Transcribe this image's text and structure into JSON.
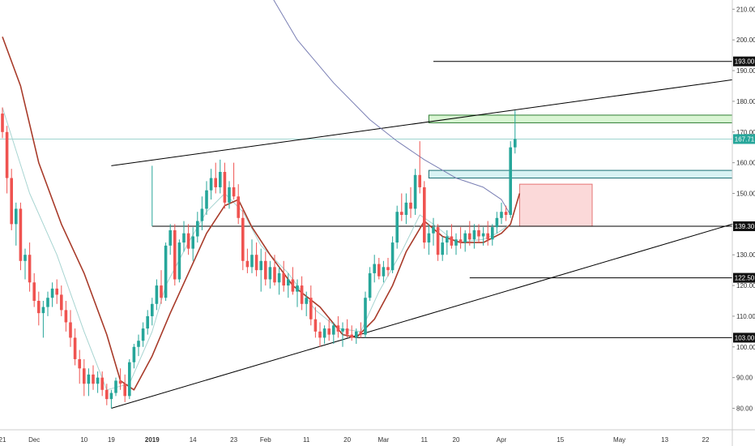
{
  "chart_data": {
    "type": "candlestick",
    "title": "",
    "xlabel": "",
    "ylabel": "",
    "ylim": [
      73,
      213
    ],
    "y_ticks": [
      "210.00",
      "200.00",
      "190.00",
      "180.00",
      "170.00",
      "160.00",
      "150.00",
      "140.00",
      "130.00",
      "120.00",
      "110.00",
      "100.00",
      "90.00",
      "80.00"
    ],
    "x_tick_labels": [
      "21",
      "Dec",
      "10",
      "19",
      "2019",
      "14",
      "23",
      "Feb",
      "11",
      "20",
      "Mar",
      "11",
      "20",
      "Apr",
      "15",
      "May",
      "13",
      "22"
    ],
    "price_badges": [
      {
        "label": "193.00",
        "value": 193.0,
        "kind": "level"
      },
      {
        "label": "167.71",
        "value": 167.71,
        "kind": "last"
      },
      {
        "label": "139.30",
        "value": 139.3,
        "kind": "level"
      },
      {
        "label": "122.50",
        "value": 122.5,
        "kind": "level"
      },
      {
        "label": "103.00",
        "value": 103.0,
        "kind": "level"
      }
    ],
    "colors": {
      "up": "#26a69a",
      "down": "#ef5350",
      "ema_fast": "#a7d4d1",
      "ema_slow": "#a83b2a",
      "sma_long": "#7a7fb4",
      "line": "#000000",
      "last": "#26a69a"
    },
    "candles": [
      [
        176,
        178,
        168,
        170
      ],
      [
        170,
        172,
        150,
        155
      ],
      [
        155,
        158,
        138,
        140
      ],
      [
        140,
        147,
        133,
        145
      ],
      [
        145,
        147,
        125,
        128
      ],
      [
        128,
        132,
        122,
        130
      ],
      [
        130,
        134,
        118,
        121
      ],
      [
        121,
        124,
        113,
        115
      ],
      [
        115,
        118,
        107,
        111
      ],
      [
        111,
        115,
        103,
        113
      ],
      [
        113,
        118,
        110,
        116
      ],
      [
        116,
        121,
        113,
        119
      ],
      [
        119,
        122,
        114,
        117
      ],
      [
        117,
        120,
        110,
        112
      ],
      [
        112,
        115,
        105,
        108
      ],
      [
        108,
        112,
        100,
        103
      ],
      [
        103,
        106,
        94,
        96
      ],
      [
        96,
        99,
        88,
        93
      ],
      [
        93,
        96,
        84,
        88
      ],
      [
        88,
        93,
        84,
        91
      ],
      [
        91,
        94,
        86,
        88
      ],
      [
        88,
        92,
        85,
        90
      ],
      [
        90,
        92,
        84,
        86
      ],
      [
        86,
        88,
        81,
        83
      ],
      [
        83,
        86,
        80,
        85
      ],
      [
        85,
        90,
        84,
        89
      ],
      [
        89,
        93,
        86,
        88
      ],
      [
        88,
        91,
        82,
        84
      ],
      [
        84,
        96,
        83,
        95
      ],
      [
        95,
        101,
        93,
        100
      ],
      [
        100,
        104,
        97,
        102
      ],
      [
        102,
        108,
        100,
        106
      ],
      [
        106,
        112,
        104,
        110
      ],
      [
        110,
        116,
        107,
        114
      ],
      [
        114,
        122,
        112,
        120
      ],
      [
        120,
        125,
        114,
        116
      ],
      [
        116,
        134,
        115,
        133
      ],
      [
        133,
        140,
        130,
        138
      ],
      [
        138,
        140,
        120,
        122
      ],
      [
        122,
        135,
        121,
        134
      ],
      [
        134,
        141,
        131,
        137
      ],
      [
        137,
        140,
        130,
        132
      ],
      [
        132,
        139,
        128,
        136
      ],
      [
        136,
        144,
        134,
        141
      ],
      [
        141,
        149,
        138,
        145
      ],
      [
        145,
        154,
        143,
        151
      ],
      [
        151,
        158,
        148,
        155
      ],
      [
        155,
        160,
        150,
        152
      ],
      [
        152,
        161,
        150,
        157
      ],
      [
        157,
        160,
        145,
        147
      ],
      [
        147,
        154,
        145,
        152
      ],
      [
        152,
        160,
        148,
        149
      ],
      [
        149,
        153,
        140,
        142
      ],
      [
        142,
        145,
        125,
        128
      ],
      [
        128,
        132,
        124,
        126
      ],
      [
        126,
        135,
        124,
        130
      ],
      [
        130,
        134,
        123,
        125
      ],
      [
        125,
        132,
        118,
        128
      ],
      [
        128,
        131,
        120,
        122
      ],
      [
        122,
        128,
        119,
        126
      ],
      [
        126,
        130,
        120,
        121
      ],
      [
        121,
        126,
        117,
        124
      ],
      [
        124,
        128,
        118,
        120
      ],
      [
        120,
        124,
        116,
        122
      ],
      [
        122,
        126,
        117,
        118
      ],
      [
        118,
        122,
        113,
        120
      ],
      [
        120,
        123,
        112,
        114
      ],
      [
        114,
        118,
        110,
        116
      ],
      [
        116,
        120,
        107,
        109
      ],
      [
        109,
        113,
        103,
        105
      ],
      [
        105,
        108,
        100,
        103
      ],
      [
        103,
        107,
        101,
        106
      ],
      [
        106,
        109,
        102,
        104
      ],
      [
        104,
        108,
        101,
        107
      ],
      [
        107,
        110,
        103,
        105
      ],
      [
        105,
        108,
        100,
        106
      ],
      [
        106,
        109,
        103,
        104
      ],
      [
        104,
        107,
        102,
        103
      ],
      [
        103,
        106,
        101,
        105
      ],
      [
        105,
        108,
        103,
        104
      ],
      [
        104,
        118,
        103,
        116
      ],
      [
        116,
        126,
        115,
        124
      ],
      [
        124,
        130,
        121,
        127
      ],
      [
        127,
        129,
        122,
        123
      ],
      [
        123,
        128,
        121,
        126
      ],
      [
        126,
        129,
        123,
        125
      ],
      [
        125,
        136,
        124,
        134
      ],
      [
        134,
        146,
        132,
        144
      ],
      [
        144,
        150,
        141,
        143
      ],
      [
        143,
        150,
        140,
        147
      ],
      [
        147,
        152,
        142,
        145
      ],
      [
        145,
        158,
        143,
        156
      ],
      [
        156,
        167,
        150,
        152
      ],
      [
        152,
        154,
        132,
        134
      ],
      [
        134,
        140,
        130,
        137
      ],
      [
        137,
        142,
        133,
        139
      ],
      [
        139,
        140,
        128,
        130
      ],
      [
        130,
        136,
        128,
        134
      ],
      [
        134,
        138,
        130,
        136
      ],
      [
        136,
        140,
        132,
        133
      ],
      [
        133,
        137,
        130,
        135
      ],
      [
        135,
        139,
        132,
        134
      ],
      [
        134,
        138,
        131,
        137
      ],
      [
        137,
        141,
        133,
        135
      ],
      [
        135,
        140,
        132,
        138
      ],
      [
        138,
        140,
        134,
        136
      ],
      [
        136,
        139,
        133,
        137
      ],
      [
        137,
        141,
        133,
        135
      ],
      [
        135,
        140,
        133,
        139
      ],
      [
        139,
        144,
        137,
        142
      ],
      [
        142,
        147,
        140,
        144
      ],
      [
        144,
        146,
        141,
        143
      ],
      [
        143,
        167,
        142,
        165
      ],
      [
        165,
        177,
        163,
        167.71
      ]
    ],
    "ema_fast": [
      [
        0,
        178
      ],
      [
        6,
        150
      ],
      [
        12,
        130
      ],
      [
        18,
        105
      ],
      [
        23,
        86
      ],
      [
        28,
        88
      ],
      [
        33,
        105
      ],
      [
        36,
        120
      ],
      [
        41,
        134
      ],
      [
        45,
        144
      ],
      [
        49,
        150
      ],
      [
        53,
        144
      ],
      [
        57,
        133
      ],
      [
        63,
        124
      ],
      [
        69,
        112
      ],
      [
        74,
        106
      ],
      [
        79,
        105
      ],
      [
        83,
        118
      ],
      [
        88,
        131
      ],
      [
        92,
        143
      ],
      [
        95,
        140
      ],
      [
        100,
        134
      ],
      [
        106,
        135
      ],
      [
        109,
        137
      ],
      [
        112,
        140
      ]
    ],
    "ema_slow": [
      [
        0,
        201
      ],
      [
        4,
        185
      ],
      [
        8,
        160
      ],
      [
        13,
        140
      ],
      [
        18,
        124
      ],
      [
        23,
        104
      ],
      [
        26,
        89
      ],
      [
        29,
        86
      ],
      [
        33,
        97
      ],
      [
        37,
        111
      ],
      [
        41,
        124
      ],
      [
        45,
        137
      ],
      [
        49,
        146
      ],
      [
        52,
        148
      ],
      [
        55,
        139
      ],
      [
        59,
        130
      ],
      [
        64,
        120
      ],
      [
        70,
        113
      ],
      [
        75,
        104
      ],
      [
        78,
        103
      ],
      [
        82,
        109
      ],
      [
        86,
        120
      ],
      [
        89,
        131
      ],
      [
        93,
        141
      ],
      [
        97,
        136
      ],
      [
        101,
        134
      ],
      [
        106,
        134
      ],
      [
        110,
        137
      ],
      [
        112,
        140
      ],
      [
        114,
        150
      ]
    ],
    "sma_long": [
      [
        59,
        215
      ],
      [
        65,
        200
      ],
      [
        73,
        186
      ],
      [
        81,
        174
      ],
      [
        87,
        167
      ],
      [
        93,
        161
      ],
      [
        100,
        155
      ],
      [
        106,
        152
      ],
      [
        110,
        148
      ],
      [
        112,
        143
      ]
    ],
    "drawings": {
      "upper_trend": {
        "from": [
          24,
          159
        ],
        "to": [
          195,
          187
        ]
      },
      "lower_trend": {
        "from": [
          24,
          80
        ],
        "to": [
          195,
          140
        ]
      },
      "h_193": {
        "value": 193.0,
        "from_x": 95,
        "to_x": 195
      },
      "h_139": {
        "value": 139.3,
        "from_x": 33,
        "to_x": 195
      },
      "h_1225": {
        "value": 122.5,
        "from_x": 103,
        "to_x": 195
      },
      "h_103": {
        "value": 103.0,
        "from_x": 78,
        "to_x": 195
      },
      "v_marker": {
        "x": 33,
        "from": 159,
        "to": 139.3
      },
      "green_zone": {
        "from_x": 94,
        "to_x": 195,
        "top": 175.5,
        "bottom": 173
      },
      "blue_zone": {
        "from_x": 94,
        "to_x": 195,
        "top": 157.5,
        "bottom": 155
      },
      "red_zone": {
        "from_x": 114,
        "to_x": 130,
        "top": 153,
        "bottom": 139.3
      }
    },
    "last_price": 167.71
  }
}
